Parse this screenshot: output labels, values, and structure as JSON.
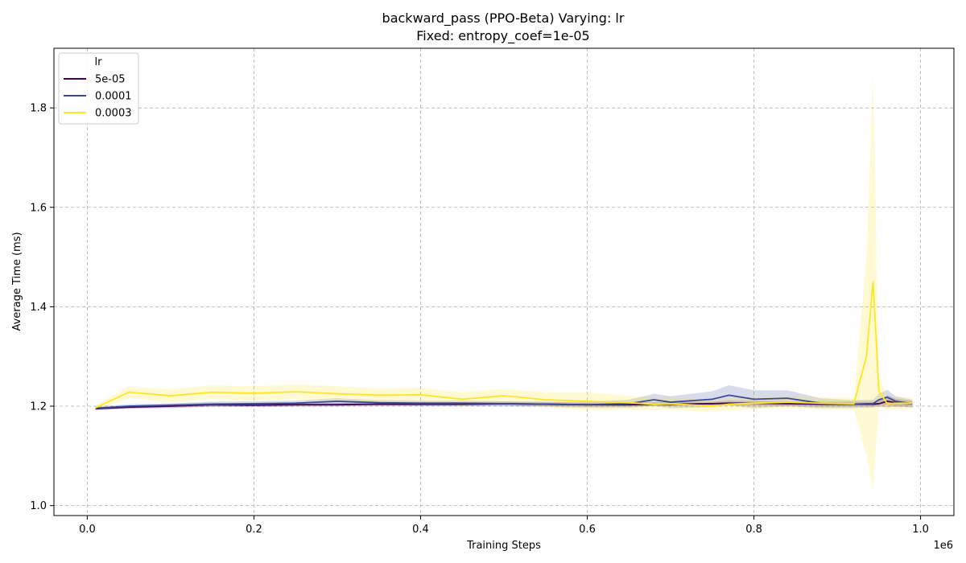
{
  "chart_data": {
    "type": "line",
    "title": "backward_pass (PPO-Beta) Varying: lr",
    "subtitle": "Fixed: entropy_coef=1e-05",
    "xlabel": "Training Steps",
    "ylabel": "Average Time (ms)",
    "x_offset_label": "1e6",
    "xlim": [
      -0.04,
      1.04
    ],
    "ylim": [
      0.98,
      1.92
    ],
    "xticks": [
      0.0,
      0.2,
      0.4,
      0.6,
      0.8,
      1.0
    ],
    "xtick_labels": [
      "0.0",
      "0.2",
      "0.4",
      "0.6",
      "0.8",
      "1.0"
    ],
    "yticks": [
      1.0,
      1.2,
      1.4,
      1.6,
      1.8
    ],
    "ytick_labels": [
      "1.0",
      "1.2",
      "1.4",
      "1.6",
      "1.8"
    ],
    "grid": true,
    "legend": {
      "title": "lr",
      "placement": "top-left"
    },
    "x": [
      0.01,
      0.05,
      0.1,
      0.15,
      0.2,
      0.25,
      0.3,
      0.35,
      0.4,
      0.45,
      0.5,
      0.55,
      0.6,
      0.65,
      0.68,
      0.7,
      0.75,
      0.77,
      0.8,
      0.84,
      0.88,
      0.92,
      0.935,
      0.943,
      0.95,
      0.96,
      0.97,
      0.99
    ],
    "series": [
      {
        "name": "5e-05",
        "color": "#440154",
        "values": [
          1.195,
          1.198,
          1.2,
          1.203,
          1.202,
          1.203,
          1.203,
          1.204,
          1.204,
          1.204,
          1.205,
          1.204,
          1.203,
          1.203,
          1.204,
          1.204,
          1.205,
          1.206,
          1.206,
          1.205,
          1.204,
          1.204,
          1.204,
          1.204,
          1.205,
          1.21,
          1.207,
          1.205
        ],
        "band": [
          0.003,
          0.003,
          0.004,
          0.004,
          0.004,
          0.004,
          0.004,
          0.004,
          0.004,
          0.004,
          0.004,
          0.004,
          0.004,
          0.004,
          0.004,
          0.004,
          0.004,
          0.005,
          0.005,
          0.005,
          0.005,
          0.005,
          0.005,
          0.005,
          0.006,
          0.012,
          0.008,
          0.006
        ]
      },
      {
        "name": "0.0001",
        "color": "#3b4994",
        "values": [
          1.196,
          1.2,
          1.202,
          1.204,
          1.205,
          1.206,
          1.21,
          1.207,
          1.206,
          1.206,
          1.205,
          1.204,
          1.203,
          1.205,
          1.213,
          1.208,
          1.214,
          1.222,
          1.214,
          1.216,
          1.206,
          1.204,
          1.205,
          1.205,
          1.213,
          1.218,
          1.21,
          1.205
        ],
        "band": [
          0.003,
          0.004,
          0.004,
          0.005,
          0.005,
          0.005,
          0.006,
          0.005,
          0.005,
          0.005,
          0.005,
          0.005,
          0.006,
          0.008,
          0.012,
          0.012,
          0.016,
          0.02,
          0.018,
          0.016,
          0.01,
          0.008,
          0.008,
          0.008,
          0.012,
          0.015,
          0.01,
          0.008
        ]
      },
      {
        "name": "0.0003",
        "color": "#fde725",
        "values": [
          1.197,
          1.228,
          1.221,
          1.228,
          1.226,
          1.229,
          1.225,
          1.222,
          1.223,
          1.214,
          1.221,
          1.213,
          1.21,
          1.207,
          1.204,
          1.205,
          1.2,
          1.204,
          1.206,
          1.208,
          1.206,
          1.205,
          1.3,
          1.45,
          1.23,
          1.205,
          1.206,
          1.206
        ],
        "band": [
          0.005,
          0.012,
          0.013,
          0.014,
          0.014,
          0.015,
          0.015,
          0.014,
          0.014,
          0.014,
          0.014,
          0.015,
          0.018,
          0.014,
          0.012,
          0.012,
          0.012,
          0.012,
          0.012,
          0.012,
          0.012,
          0.012,
          0.2,
          0.42,
          0.03,
          0.012,
          0.012,
          0.012
        ]
      }
    ]
  }
}
